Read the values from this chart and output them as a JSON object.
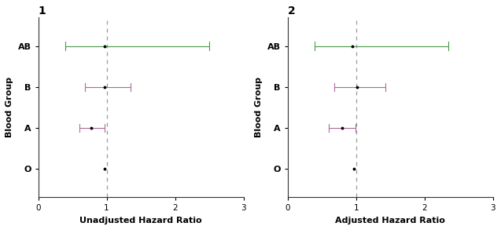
{
  "plot1": {
    "title": "1",
    "xlabel": "Unadjusted Hazard Ratio",
    "ylabel": "Blood Group",
    "groups": [
      "AB",
      "B",
      "A",
      "O"
    ],
    "centers": [
      0.97,
      0.97,
      0.78,
      0.97
    ],
    "ci_low": [
      0.4,
      0.68,
      0.6,
      0.97
    ],
    "ci_high": [
      2.5,
      1.35,
      0.97,
      0.97
    ],
    "colors": [
      "#4a9a4a",
      "#b06898",
      "#b06898",
      "#222222"
    ],
    "has_ci": [
      true,
      true,
      true,
      false
    ],
    "xlim": [
      0,
      3
    ],
    "xticks": [
      0,
      1,
      2,
      3
    ],
    "ref_line": 1.0
  },
  "plot2": {
    "title": "2",
    "xlabel": "Adjusted Hazard Ratio",
    "ylabel": "Blood Group",
    "groups": [
      "AB",
      "B",
      "A",
      "O"
    ],
    "centers": [
      0.95,
      1.02,
      0.8,
      0.97
    ],
    "ci_low": [
      0.4,
      0.68,
      0.6,
      0.97
    ],
    "ci_high": [
      2.35,
      1.43,
      0.99,
      0.97
    ],
    "colors": [
      "#4a9a4a",
      "#b06898",
      "#b06898",
      "#222222"
    ],
    "has_ci": [
      true,
      true,
      true,
      false
    ],
    "xlim": [
      0,
      3
    ],
    "xticks": [
      0,
      1,
      2,
      3
    ],
    "ref_line": 1.0
  }
}
